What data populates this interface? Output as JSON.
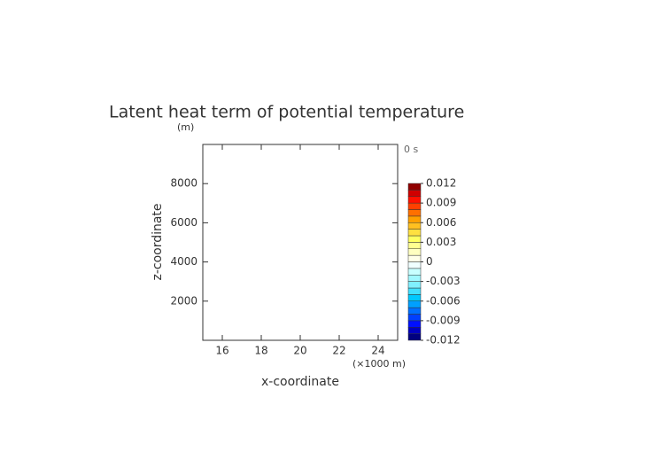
{
  "chart_data": {
    "type": "contour",
    "title": "Latent heat term of potential temperature",
    "y_unit": "(m)",
    "time_label": "0 s",
    "x_label": "x-coordinate",
    "x_unit": "(×1000 m)",
    "y_label": "z-coordinate",
    "xlim": [
      15,
      25
    ],
    "xticks": [
      16,
      18,
      20,
      22,
      24
    ],
    "ylim": [
      0,
      10000
    ],
    "yticks": [
      2000,
      4000,
      6000,
      8000
    ],
    "colorbar": {
      "clim": [
        -0.012,
        0.012
      ],
      "ticks": [
        0.012,
        0.009,
        0.006,
        0.003,
        0,
        -0.003,
        -0.006,
        -0.009,
        -0.012
      ],
      "levels": [
        -0.012,
        -0.011,
        -0.01,
        -0.009,
        -0.008,
        -0.007,
        -0.006,
        -0.005,
        -0.004,
        -0.003,
        -0.002,
        -0.001,
        0,
        0.001,
        0.002,
        0.003,
        0.004,
        0.005,
        0.006,
        0.007,
        0.008,
        0.009,
        0.01,
        0.011,
        0.012
      ],
      "colors": [
        "#000080",
        "#0000c0",
        "#0010ff",
        "#0040ff",
        "#0070ff",
        "#00a0ff",
        "#00c8ff",
        "#40e0ff",
        "#80f0ff",
        "#a0f8ff",
        "#c8ffff",
        "#f0ffff",
        "#ffffe8",
        "#ffffc0",
        "#ffff90",
        "#ffff60",
        "#ffe040",
        "#ffc020",
        "#ffa000",
        "#ff7000",
        "#ff4000",
        "#ff1000",
        "#d00000",
        "#900000"
      ]
    }
  }
}
